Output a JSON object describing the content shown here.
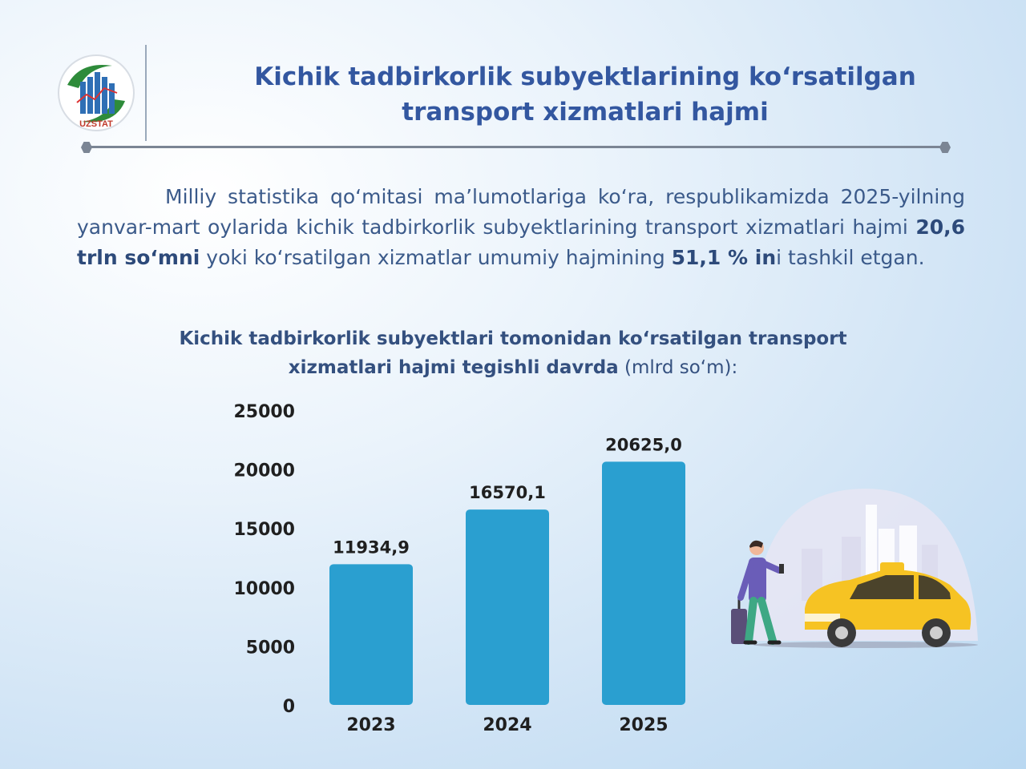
{
  "logo": {
    "text": "UZSTAT"
  },
  "header": {
    "title_line1": "Kichik tadbirkorlik subyektlarining ko‘rsatilgan",
    "title_line2": "transport xizmatlari hajmi"
  },
  "intro": {
    "part1": "Milliy statistika qo‘mitasi ma’lumotlariga ko‘ra, respublikamizda 2025-yilning yanvar-mart oylarida kichik tadbirkorlik subyektlarining transport xizmatlari hajmi ",
    "bold1": "20,6 trln so‘mni",
    "part2": " yoki ko‘rsatilgan xizmatlar umumiy hajmining ",
    "bold2": "51,1 % in",
    "part3": "i tashkil etgan."
  },
  "chart_header": {
    "line1": "Kichik tadbirkorlik subyektlari tomonidan ko‘rsatilgan transport",
    "line2_bold": "xizmatlari hajmi tegishli davrda",
    "line2_unit": " (mlrd so‘m):"
  },
  "chart_data": {
    "type": "bar",
    "categories": [
      "2023",
      "2024",
      "2025"
    ],
    "values": [
      11934.9,
      16570.1,
      20625.0
    ],
    "value_labels": [
      "11934,9",
      "16570,1",
      "20625,0"
    ],
    "ylim": [
      0,
      25000
    ],
    "yticks": [
      "0",
      "5000",
      "10000",
      "15000",
      "20000",
      "25000"
    ],
    "bar_color": "#2a9fd0",
    "grid": false
  },
  "colors": {
    "title": "#3357a0",
    "text": "#3b5a8a",
    "bar": "#2a9fd0",
    "taxi": "#f6c323"
  }
}
